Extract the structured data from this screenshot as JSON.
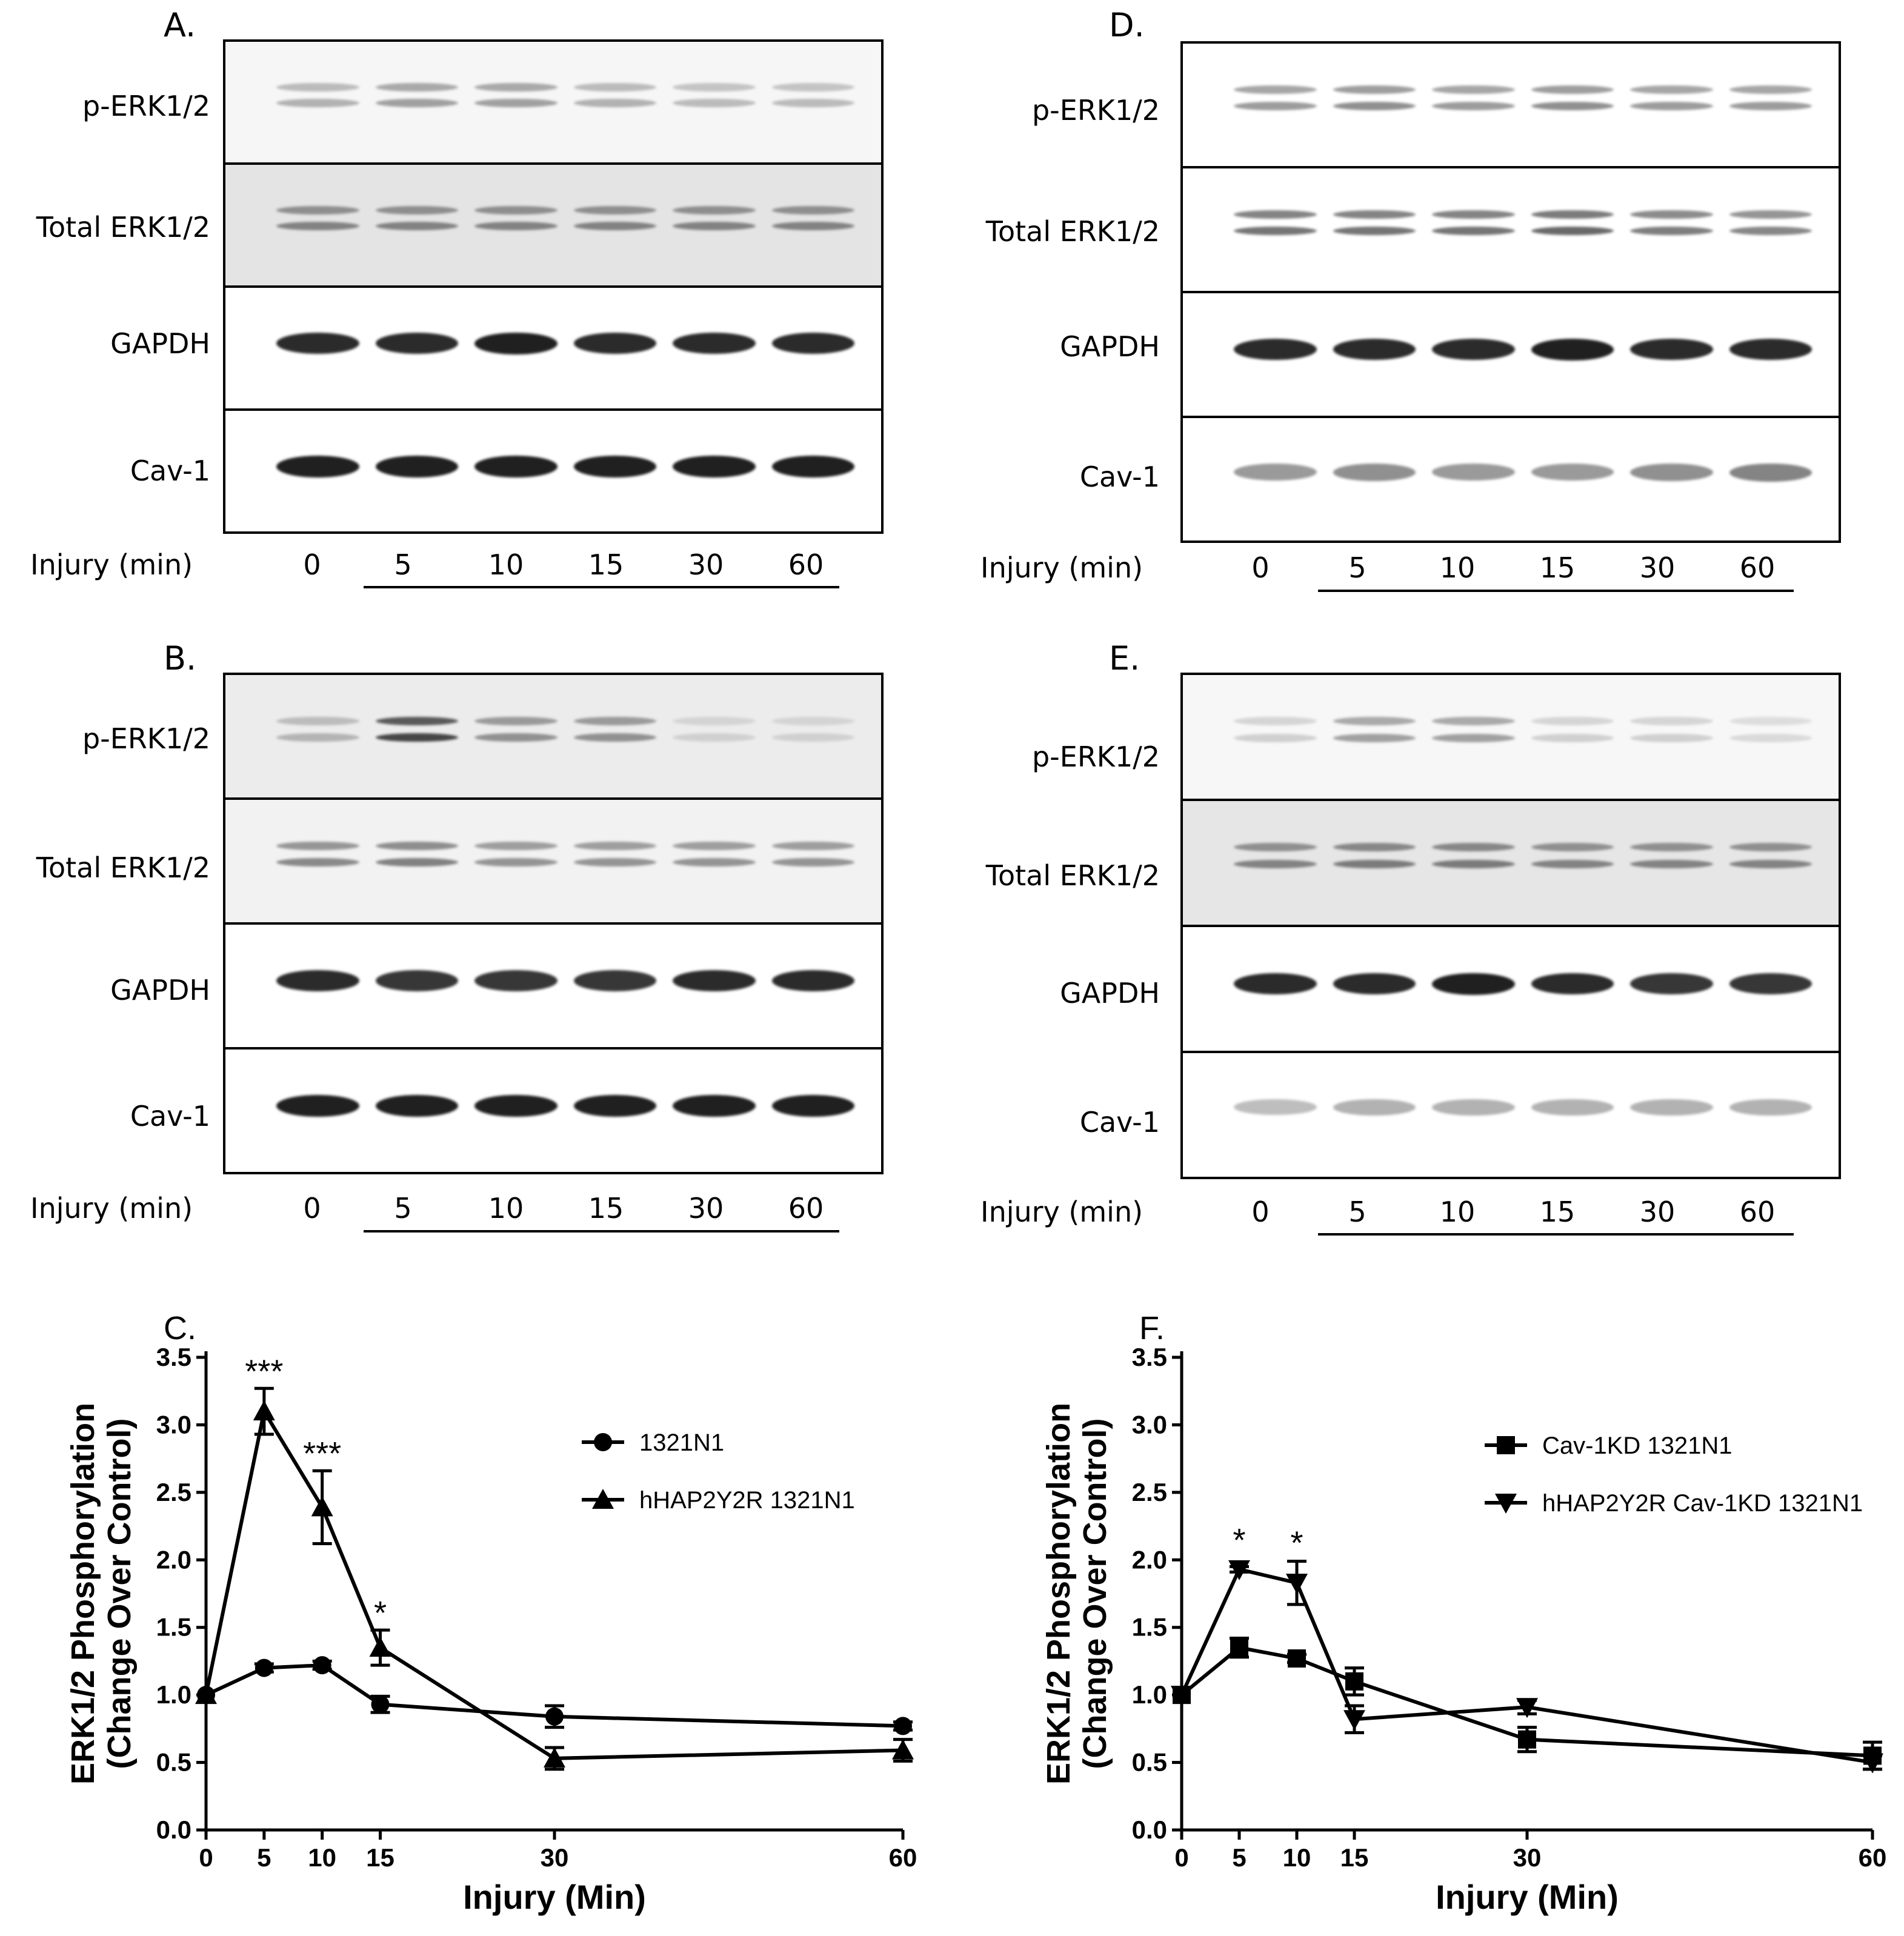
{
  "figure": {
    "panels": [
      {
        "id": "A",
        "letter": "A.",
        "rows": [
          "p-ERK1/2",
          "Total ERK1/2",
          "GAPDH",
          "Cav-1"
        ],
        "xlabel": "Injury (min)",
        "times": [
          "0",
          "5",
          "10",
          "15",
          "30",
          "60"
        ]
      },
      {
        "id": "B",
        "letter": "B.",
        "rows": [
          "p-ERK1/2",
          "Total ERK1/2",
          "GAPDH",
          "Cav-1"
        ],
        "xlabel": "Injury (min)",
        "times": [
          "0",
          "5",
          "10",
          "15",
          "30",
          "60"
        ]
      },
      {
        "id": "D",
        "letter": "D.",
        "rows": [
          "p-ERK1/2",
          "Total ERK1/2",
          "GAPDH",
          "Cav-1"
        ],
        "xlabel": "Injury (min)",
        "times": [
          "0",
          "5",
          "10",
          "15",
          "30",
          "60"
        ]
      },
      {
        "id": "E",
        "letter": "E.",
        "rows": [
          "p-ERK1/2",
          "Total ERK1/2",
          "GAPDH",
          "Cav-1"
        ],
        "xlabel": "Injury (min)",
        "times": [
          "0",
          "5",
          "10",
          "15",
          "30",
          "60"
        ]
      }
    ]
  },
  "chart_data": [
    {
      "panel": "C.",
      "type": "line",
      "xlabel": "Injury (Min)",
      "ylabel_line1": "ERK1/2 Phosphorylation",
      "ylabel_line2": "(Change Over Control)",
      "xlim": [
        0,
        60
      ],
      "ylim": [
        0,
        3.5
      ],
      "xticks": [
        0,
        5,
        10,
        15,
        30,
        60
      ],
      "yticks": [
        "0.0",
        "0.5",
        "1.0",
        "1.5",
        "2.0",
        "2.5",
        "3.0",
        "3.5"
      ],
      "series": [
        {
          "name": "1321N1",
          "marker": "circle",
          "x": [
            0,
            5,
            10,
            15,
            30,
            60
          ],
          "y": [
            1.0,
            1.2,
            1.22,
            0.93,
            0.84,
            0.77
          ],
          "err": [
            0,
            0.03,
            0.03,
            0.06,
            0.08,
            0.03
          ]
        },
        {
          "name": "hHAP2Y2R 1321N1",
          "marker": "triangle-up",
          "x": [
            0,
            5,
            10,
            15,
            30,
            60
          ],
          "y": [
            1.0,
            3.1,
            2.39,
            1.35,
            0.53,
            0.59
          ],
          "err": [
            0,
            0.17,
            0.27,
            0.13,
            0.08,
            0.08
          ]
        }
      ],
      "annotations": [
        {
          "x": 5,
          "y": 3.27,
          "text": "***"
        },
        {
          "x": 10,
          "y": 2.66,
          "text": "***"
        },
        {
          "x": 15,
          "y": 1.48,
          "text": "*"
        }
      ]
    },
    {
      "panel": "F.",
      "type": "line",
      "xlabel": "Injury (Min)",
      "ylabel_line1": "ERK1/2 Phosphorylation",
      "ylabel_line2": "(Change Over Control)",
      "xlim": [
        0,
        60
      ],
      "ylim": [
        0,
        3.5
      ],
      "xticks": [
        0,
        5,
        10,
        15,
        30,
        60
      ],
      "yticks": [
        "0.0",
        "0.5",
        "1.0",
        "1.5",
        "2.0",
        "2.5",
        "3.0",
        "3.5"
      ],
      "series": [
        {
          "name": "Cav-1KD 1321N1",
          "marker": "square",
          "x": [
            0,
            5,
            10,
            15,
            30,
            60
          ],
          "y": [
            1.0,
            1.35,
            1.27,
            1.1,
            0.67,
            0.55
          ],
          "err": [
            0,
            0.07,
            0.03,
            0.1,
            0.09,
            0.1
          ]
        },
        {
          "name": "hHAP2Y2R Cav-1KD 1321N1",
          "marker": "triangle-down",
          "x": [
            0,
            5,
            10,
            15,
            30,
            60
          ],
          "y": [
            1.0,
            1.93,
            1.83,
            0.82,
            0.91,
            0.5
          ],
          "err": [
            0,
            0.02,
            0.16,
            0.1,
            0.05,
            0.05
          ]
        }
      ],
      "annotations": [
        {
          "x": 5,
          "y": 2.02,
          "text": "*"
        },
        {
          "x": 10,
          "y": 2.0,
          "text": "*"
        }
      ]
    }
  ]
}
